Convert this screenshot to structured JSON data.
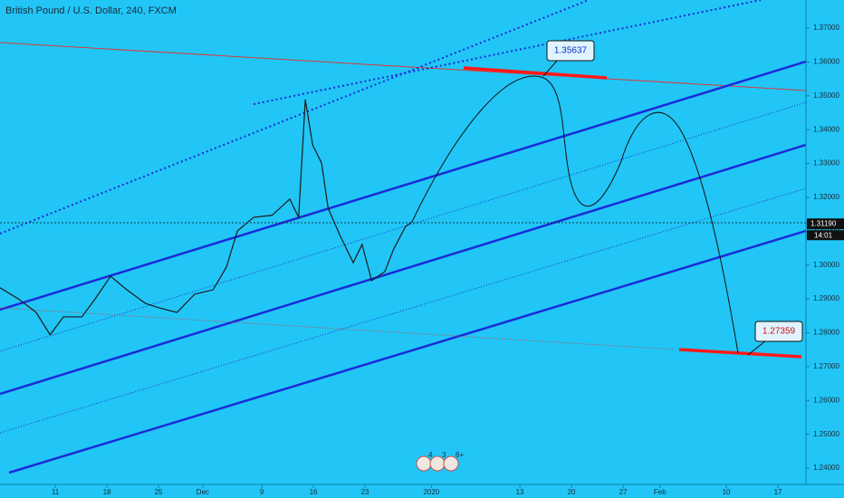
{
  "chart_data": {
    "type": "line",
    "title": "British Pound / U.S. Dollar, 240, FXCM",
    "x": [
      2.5,
      5.0,
      7.4,
      9.3,
      11.1,
      13.6,
      15.4,
      17.5,
      19.7,
      22.2,
      24.0,
      26.5,
      28.9,
      31.4,
      33.2,
      34.7,
      36.9,
      39.4,
      41.8,
      43.0,
      43.9,
      44.9,
      46.1,
      47.0,
      48.6,
      50.4,
      51.6,
      52.9,
      54.7,
      55.9,
      57.5,
      58.4
    ],
    "series": [
      {
        "name": "GBPUSD",
        "color": "#1a1a1a",
        "values": [
          1.2933,
          1.29,
          1.286,
          1.2794,
          1.2847,
          1.2847,
          1.29,
          1.2967,
          1.2927,
          1.2887,
          1.2874,
          1.286,
          1.2914,
          1.2927,
          1.2994,
          1.3101,
          1.3141,
          1.3147,
          1.3195,
          1.3141,
          1.3489,
          1.3355,
          1.3302,
          1.3168,
          1.3088,
          1.3007,
          1.3061,
          1.2954,
          1.2981,
          1.3048,
          1.3114,
          1.3128
        ]
      }
    ],
    "xlim": [
      2.5,
      111.8
    ],
    "xticks": [
      {
        "value": 10,
        "label": "11"
      },
      {
        "value": 17,
        "label": "18"
      },
      {
        "value": 24,
        "label": "25"
      },
      {
        "value": 30,
        "label": "Dec"
      },
      {
        "value": 38,
        "label": "9"
      },
      {
        "value": 45,
        "label": "16"
      },
      {
        "value": 52,
        "label": "23"
      },
      {
        "value": 61,
        "label": "2020"
      },
      {
        "value": 73,
        "label": "13"
      },
      {
        "value": 80,
        "label": "20"
      },
      {
        "value": 87,
        "label": "27"
      },
      {
        "value": 92,
        "label": "Feb"
      },
      {
        "value": 101,
        "label": "10"
      },
      {
        "value": 108,
        "label": "17"
      }
    ],
    "ylim": [
      1.2352,
      1.3783
    ],
    "yticks": [
      {
        "value": 1.24,
        "label": "1.24000"
      },
      {
        "value": 1.25,
        "label": "1.25000"
      },
      {
        "value": 1.26,
        "label": "1.26000"
      },
      {
        "value": 1.27,
        "label": "1.27000"
      },
      {
        "value": 1.28,
        "label": "1.28000"
      },
      {
        "value": 1.29,
        "label": "1.29000"
      },
      {
        "value": 1.3,
        "label": "1.30000"
      },
      {
        "value": 1.31,
        "label": "1.31000"
      },
      {
        "value": 1.32,
        "label": "1.32000"
      },
      {
        "value": 1.33,
        "label": "1.33000"
      },
      {
        "value": 1.34,
        "label": "1.34000"
      },
      {
        "value": 1.35,
        "label": "1.35000"
      },
      {
        "value": 1.36,
        "label": "1.36000"
      },
      {
        "value": 1.37,
        "label": "1.37000"
      }
    ],
    "last_price": {
      "value": 1.3119,
      "label": "1.31190",
      "time": "14:01"
    },
    "annotations": [
      {
        "value": 1.35637,
        "label": "1.35637"
      },
      {
        "value": 1.27359,
        "label": "1.27359"
      }
    ],
    "events": [
      "4",
      "3",
      "6+"
    ]
  }
}
